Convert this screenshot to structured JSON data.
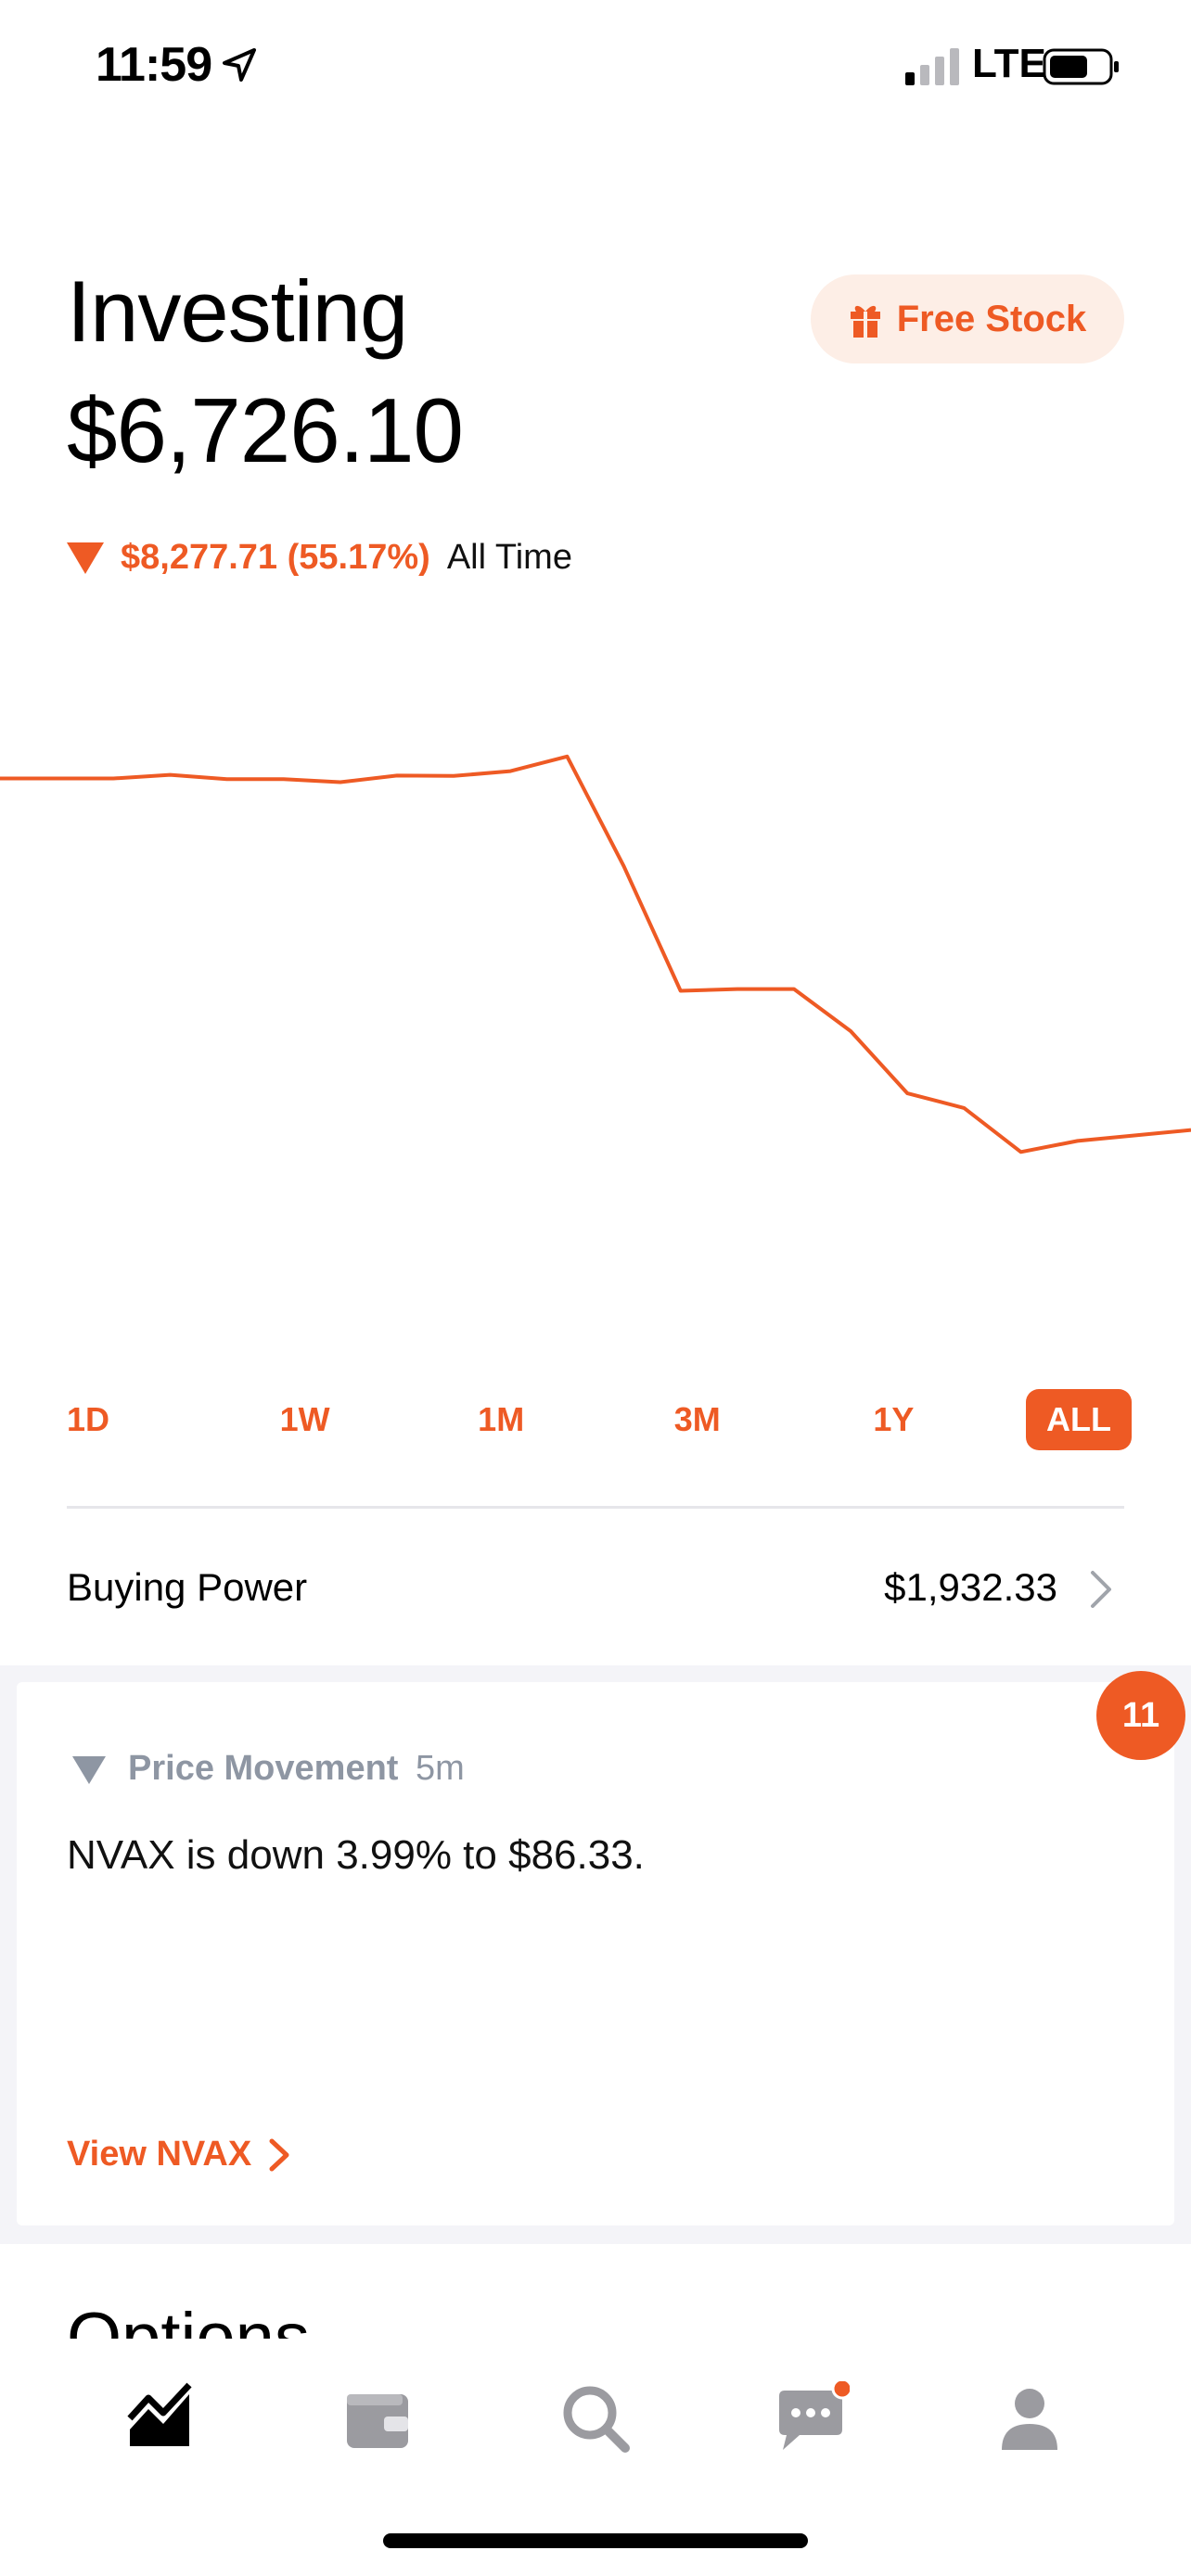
{
  "status_bar": {
    "time": "11:59",
    "network": "LTE"
  },
  "header": {
    "title": "Investing",
    "portfolio_value": "$6,726.10",
    "free_stock_label": "Free Stock"
  },
  "change": {
    "amount_percent": "$8,277.71 (55.17%)",
    "period": "All Time"
  },
  "colors": {
    "accent": "#ee5a24",
    "accent_light": "#fdeee6",
    "muted": "#8e96a3"
  },
  "chart_data": {
    "type": "line",
    "title": "",
    "xlabel": "",
    "ylabel": "",
    "x": [
      0,
      1,
      2,
      3,
      4,
      5,
      6,
      7,
      8,
      9,
      10,
      11,
      12,
      13,
      14,
      15,
      16,
      17,
      18,
      19,
      20,
      21
    ],
    "values": [
      14600,
      14600,
      14600,
      14700,
      14580,
      14580,
      14500,
      14680,
      14670,
      14800,
      15200,
      12200,
      8800,
      8850,
      8850,
      7700,
      6000,
      5600,
      4400,
      4700,
      4850,
      5000
    ],
    "ylim": [
      0,
      15500
    ],
    "grid": false,
    "legend": "none"
  },
  "ranges": [
    {
      "label": "1D",
      "active": false
    },
    {
      "label": "1W",
      "active": false
    },
    {
      "label": "1M",
      "active": false
    },
    {
      "label": "3M",
      "active": false
    },
    {
      "label": "1Y",
      "active": false
    },
    {
      "label": "ALL",
      "active": true
    }
  ],
  "buying_power": {
    "label": "Buying Power",
    "value": "$1,932.33"
  },
  "feed": {
    "badge_count": "11",
    "card": {
      "type": "Price Movement",
      "time": "5m",
      "message": "NVAX is down 3.99% to $86.33.",
      "link_label": "View NVAX"
    }
  },
  "next_section_title": "Options",
  "tab_bar": {
    "icons": [
      "portfolio-chart-icon",
      "wallet-icon",
      "search-icon",
      "messages-icon",
      "profile-icon"
    ],
    "active_index": 0
  }
}
